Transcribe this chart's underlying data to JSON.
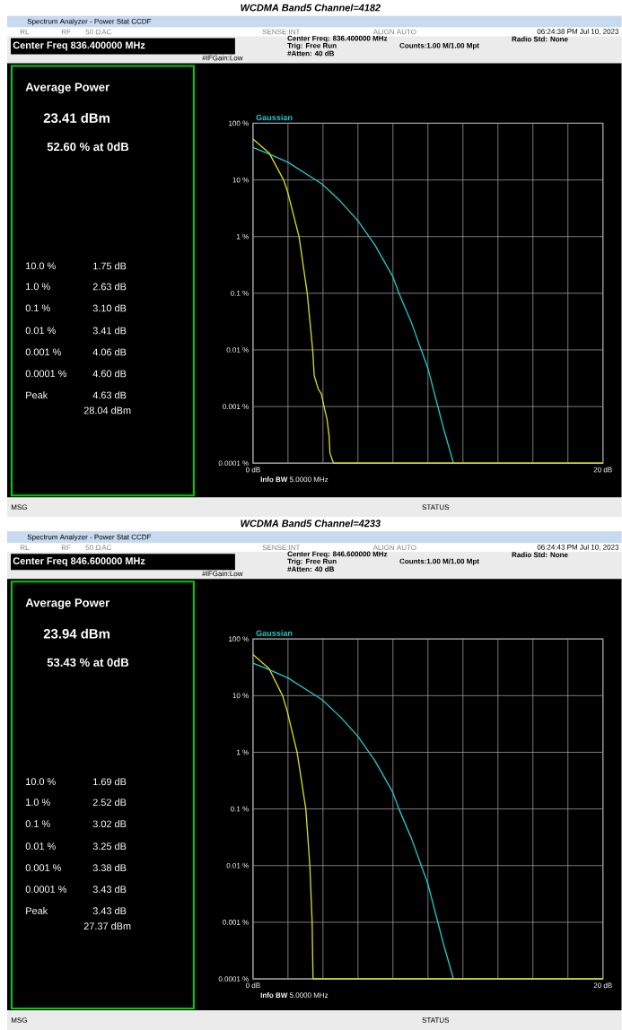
{
  "chart_data": [
    {
      "type": "line",
      "title": "WCDMA Band5 Channel=4182",
      "log": "y",
      "grid": true,
      "xlim": [
        0,
        20
      ],
      "ylim": [
        0.0001,
        100
      ],
      "xticks": [
        {
          "value": 0,
          "label": "0 dB"
        },
        {
          "value": 2,
          "label": null
        },
        {
          "value": 4,
          "label": null
        },
        {
          "value": 6,
          "label": null
        },
        {
          "value": 8,
          "label": null
        },
        {
          "value": 10,
          "label": null
        },
        {
          "value": 12,
          "label": null
        },
        {
          "value": 14,
          "label": null
        },
        {
          "value": 16,
          "label": null
        },
        {
          "value": 18,
          "label": null
        },
        {
          "value": 20,
          "label": "20 dB"
        }
      ],
      "yticks": [
        {
          "value": 100,
          "label": "100 %"
        },
        {
          "value": 10,
          "label": "10 %"
        },
        {
          "value": 1,
          "label": "1 %"
        },
        {
          "value": 0.1,
          "label": "0.1 %"
        },
        {
          "value": 0.01,
          "label": "0.01 %"
        },
        {
          "value": 0.001,
          "label": "0.001 %"
        },
        {
          "value": 0.0001,
          "label": "0.0001 %"
        }
      ],
      "series": [
        {
          "name": "Gaussian",
          "color": "#20c8c8",
          "x": [
            0,
            0.92,
            2,
            3.94,
            5,
            6,
            6.97,
            7.98,
            8.34,
            9.06,
            10,
            10.9,
            11.46
          ],
          "values": [
            37.5,
            28.8,
            20.5,
            8.5,
            4.2,
            1.9,
            0.71,
            0.2,
            0.1,
            0.03,
            0.0047,
            0.0004,
            0.0001
          ]
        },
        {
          "color": "#d8d820",
          "x": [
            0,
            0.92,
            1.75,
            1.97,
            2.63,
            3.1,
            3.41,
            3.5,
            3.74,
            3.9,
            4.06,
            4.23,
            4.35,
            4.4,
            4.6,
            20
          ],
          "values": [
            52.6,
            30,
            10,
            6.3,
            1,
            0.1,
            0.01,
            0.0035,
            0.002,
            0.0017,
            0.001,
            0.0006,
            0.0003,
            0.00015,
            0.0001,
            0.0001
          ]
        }
      ],
      "annotations": [
        "Spectrum Analyzer - Power Stat CCDF",
        "RL",
        "RF",
        "50 Ω",
        "AC",
        "SENSE:INT",
        "ALIGN AUTO",
        "06:24:38 PM Jul 10, 2023",
        "Center Freq 836.400000 MHz",
        "Center Freq: 836.400000 MHz",
        "Trig: Free Run",
        "#Atten: 40 dB",
        "Counts:1.00 M/1.00 Mpt",
        "Radio Std: None",
        "#IFGain:Low",
        "Average Power",
        "23.41 dBm",
        "52.60 % at 0dB",
        "10.0 %",
        "1.75 dB",
        "1.0 %",
        "2.63 dB",
        "0.1 %",
        "3.10 dB",
        "0.01 %",
        "3.41 dB",
        "0.001 %",
        "4.06 dB",
        "0.0001 %",
        "4.60 dB",
        "Peak",
        "4.63 dB",
        "28.04 dBm",
        "**Info BW** 5.0000 MHz",
        "MSG",
        "STATUS"
      ]
    },
    {
      "type": "line",
      "title": "WCDMA Band5 Channel=4233",
      "log": "y",
      "grid": true,
      "xlim": [
        0,
        20
      ],
      "ylim": [
        0.0001,
        100
      ],
      "xticks": [
        {
          "value": 0,
          "label": "0 dB"
        },
        {
          "value": 2,
          "label": null
        },
        {
          "value": 4,
          "label": null
        },
        {
          "value": 6,
          "label": null
        },
        {
          "value": 8,
          "label": null
        },
        {
          "value": 10,
          "label": null
        },
        {
          "value": 12,
          "label": null
        },
        {
          "value": 14,
          "label": null
        },
        {
          "value": 16,
          "label": null
        },
        {
          "value": 18,
          "label": null
        },
        {
          "value": 20,
          "label": "20 dB"
        }
      ],
      "yticks": [
        {
          "value": 100,
          "label": "100 %"
        },
        {
          "value": 10,
          "label": "10 %"
        },
        {
          "value": 1,
          "label": "1 %"
        },
        {
          "value": 0.1,
          "label": "0.1 %"
        },
        {
          "value": 0.01,
          "label": "0.01 %"
        },
        {
          "value": 0.001,
          "label": "0.001 %"
        },
        {
          "value": 0.0001,
          "label": "0.0001 %"
        }
      ],
      "series": [
        {
          "name": "Gaussian",
          "color": "#20c8c8",
          "x": [
            0,
            0.92,
            2,
            3.94,
            5,
            6,
            6.97,
            7.98,
            8.34,
            9.06,
            10,
            10.9,
            11.46
          ],
          "values": [
            37.5,
            28.8,
            20.5,
            8.5,
            4.2,
            1.9,
            0.71,
            0.2,
            0.1,
            0.03,
            0.0047,
            0.0004,
            0.0001
          ]
        },
        {
          "color": "#d8d820",
          "x": [
            0,
            0.92,
            1.69,
            1.97,
            2.52,
            3.02,
            3.25,
            3.38,
            3.43,
            20
          ],
          "values": [
            53.43,
            30,
            10,
            5.1,
            1,
            0.1,
            0.01,
            0.001,
            0.0001,
            0.0001
          ]
        }
      ],
      "annotations": [
        "Spectrum Analyzer - Power Stat CCDF",
        "RL",
        "RF",
        "50 Ω",
        "AC",
        "SENSE:INT",
        "ALIGN AUTO",
        "06:24:43 PM Jul 10, 2023",
        "Center Freq 846.600000 MHz",
        "Center Freq: 846.600000 MHz",
        "Trig: Free Run",
        "#Atten: 40 dB",
        "Counts:1.00 M/1.00 Mpt",
        "Radio Std: None",
        "#IFGain:Low",
        "Average Power",
        "23.94 dBm",
        "53.43 % at 0dB",
        "10.0 %",
        "1.69 dB",
        "1.0 %",
        "2.52 dB",
        "0.1 %",
        "3.02 dB",
        "0.01 %",
        "3.25 dB",
        "0.001 %",
        "3.38 dB",
        "0.0001 %",
        "3.43 dB",
        "Peak",
        "3.43 dB",
        "27.37 dBm",
        "**Info BW** 5.0000 MHz",
        "MSG",
        "STATUS"
      ]
    }
  ]
}
